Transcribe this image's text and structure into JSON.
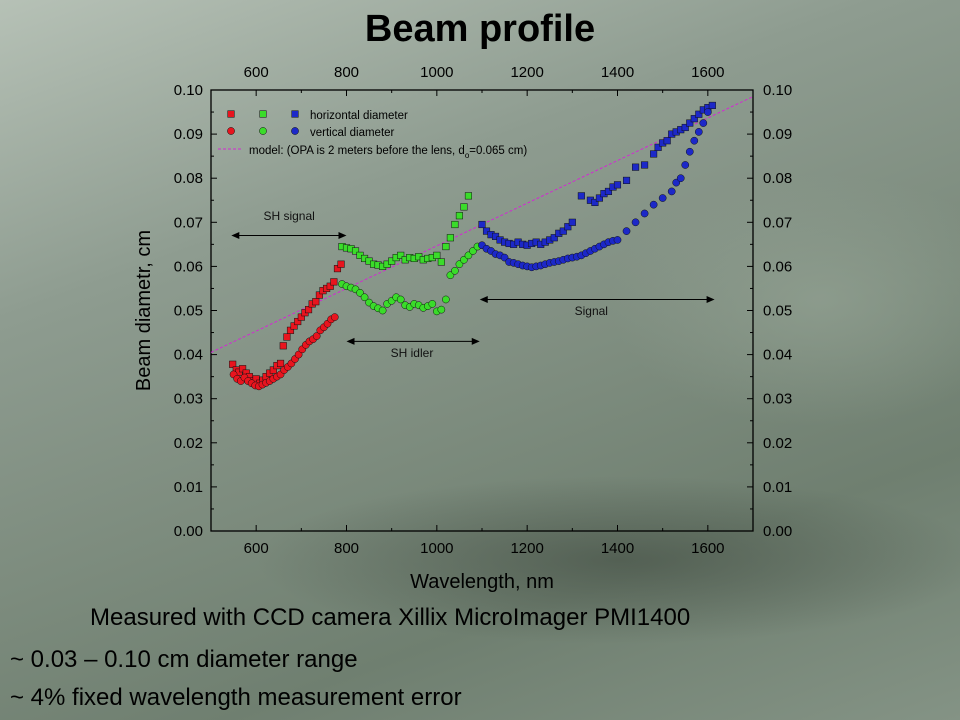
{
  "title": "Beam profile",
  "captions": {
    "line1": "Measured with CCD camera Xillix MicroImager PMI1400",
    "line2": "~ 0.03 – 0.10 cm diameter range",
    "line3": "~ 4% fixed wavelength measurement error"
  },
  "colors": {
    "red": "#e8141e",
    "green": "#3adc2a",
    "blue": "#1c28c8",
    "model": "#d22ad2"
  },
  "chart_data": {
    "type": "scatter",
    "xlabel": "Wavelength, nm",
    "ylabel": "Beam diametr, cm",
    "xlim": [
      500,
      1700
    ],
    "ylim": [
      0.0,
      0.1
    ],
    "xticks": [
      "600",
      "800",
      "1000",
      "1200",
      "1400",
      "1600"
    ],
    "yticks": [
      "0.00",
      "0.01",
      "0.02",
      "0.03",
      "0.04",
      "0.05",
      "0.06",
      "0.07",
      "0.08",
      "0.09",
      "0.10"
    ],
    "legend": {
      "horizontal": "horizontal diameter",
      "vertical": "vertical diameter",
      "model_prefix": "model: (OPA is 2 meters before the lens, d",
      "model_sub": "o",
      "model_suffix": "=0.065 cm)"
    },
    "annotations": [
      {
        "text": "SH signal",
        "from": 545,
        "to": 800,
        "y": 0.067,
        "label_y": 0.0705,
        "label_x": 673
      },
      {
        "text": "SH idler",
        "from": 800,
        "to": 1095,
        "y": 0.043,
        "label_y": 0.0395,
        "label_x": 945
      },
      {
        "text": "Signal",
        "from": 1095,
        "to": 1615,
        "y": 0.0525,
        "label_y": 0.049,
        "label_x": 1342
      }
    ],
    "model_line": {
      "x": [
        500,
        1700
      ],
      "y": [
        0.0405,
        0.0985
      ]
    },
    "series": [
      {
        "name": "horizontal diameter",
        "group": "red",
        "marker": "square",
        "x": [
          548,
          556,
          562,
          570,
          578,
          585,
          592,
          600,
          608,
          615,
          622,
          630,
          638,
          646,
          654,
          660,
          668,
          676,
          684,
          692,
          700,
          708,
          716,
          724,
          732,
          740,
          748,
          756,
          764,
          772,
          780,
          788
        ],
        "y": [
          0.0378,
          0.0365,
          0.036,
          0.0368,
          0.0358,
          0.035,
          0.034,
          0.0345,
          0.0335,
          0.0342,
          0.035,
          0.0358,
          0.0365,
          0.0375,
          0.038,
          0.042,
          0.044,
          0.0455,
          0.0465,
          0.0475,
          0.0485,
          0.0495,
          0.0502,
          0.0515,
          0.052,
          0.0535,
          0.0545,
          0.055,
          0.0555,
          0.0565,
          0.0595,
          0.0605
        ]
      },
      {
        "name": "vertical diameter",
        "group": "red",
        "marker": "circle",
        "x": [
          550,
          558,
          566,
          574,
          582,
          590,
          598,
          606,
          614,
          622,
          630,
          638,
          646,
          654,
          662,
          670,
          678,
          686,
          694,
          702,
          710,
          718,
          726,
          734,
          742,
          750,
          758,
          766,
          774
        ],
        "y": [
          0.0355,
          0.0345,
          0.034,
          0.0348,
          0.034,
          0.0335,
          0.033,
          0.0328,
          0.0332,
          0.0336,
          0.034,
          0.0345,
          0.035,
          0.0355,
          0.0365,
          0.0372,
          0.038,
          0.039,
          0.04,
          0.0412,
          0.0422,
          0.043,
          0.0435,
          0.0442,
          0.0455,
          0.0462,
          0.047,
          0.048,
          0.0485
        ]
      },
      {
        "name": "horizontal diameter",
        "group": "green",
        "marker": "square",
        "x": [
          790,
          800,
          810,
          820,
          830,
          840,
          850,
          860,
          870,
          880,
          890,
          900,
          910,
          920,
          930,
          940,
          950,
          960,
          970,
          980,
          990,
          1000,
          1010,
          1020,
          1030,
          1040,
          1050,
          1060,
          1070
        ],
        "y": [
          0.0645,
          0.0642,
          0.064,
          0.0635,
          0.0625,
          0.0618,
          0.0612,
          0.0605,
          0.0603,
          0.06,
          0.0605,
          0.0612,
          0.062,
          0.0625,
          0.0615,
          0.062,
          0.0618,
          0.0622,
          0.0615,
          0.0618,
          0.062,
          0.0625,
          0.061,
          0.0645,
          0.0665,
          0.0695,
          0.0715,
          0.0735,
          0.076
        ]
      },
      {
        "name": "vertical diameter",
        "group": "green",
        "marker": "circle",
        "x": [
          790,
          800,
          810,
          820,
          830,
          840,
          850,
          860,
          870,
          880,
          890,
          900,
          910,
          920,
          930,
          940,
          950,
          960,
          970,
          980,
          990,
          1000,
          1010,
          1020,
          1030,
          1040,
          1050,
          1060,
          1070,
          1080,
          1090
        ],
        "y": [
          0.056,
          0.0555,
          0.0552,
          0.0548,
          0.054,
          0.053,
          0.0518,
          0.051,
          0.0505,
          0.05,
          0.0515,
          0.0522,
          0.053,
          0.0525,
          0.0512,
          0.0508,
          0.0515,
          0.0512,
          0.0506,
          0.051,
          0.0515,
          0.0498,
          0.0502,
          0.0525,
          0.058,
          0.059,
          0.0605,
          0.0615,
          0.0625,
          0.0635,
          0.0645
        ]
      },
      {
        "name": "horizontal diameter",
        "group": "blue",
        "marker": "square",
        "x": [
          1100,
          1110,
          1120,
          1130,
          1140,
          1150,
          1160,
          1170,
          1180,
          1190,
          1200,
          1210,
          1220,
          1230,
          1240,
          1250,
          1260,
          1270,
          1280,
          1290,
          1300,
          1320,
          1340,
          1350,
          1360,
          1370,
          1380,
          1390,
          1400,
          1420,
          1440,
          1460,
          1480,
          1490,
          1500,
          1510,
          1520,
          1530,
          1540,
          1550,
          1560,
          1570,
          1580,
          1590,
          1600,
          1610
        ],
        "y": [
          0.0695,
          0.068,
          0.0672,
          0.0668,
          0.066,
          0.0655,
          0.0652,
          0.065,
          0.0655,
          0.065,
          0.0648,
          0.0652,
          0.0655,
          0.065,
          0.0655,
          0.066,
          0.0665,
          0.0675,
          0.068,
          0.069,
          0.07,
          0.076,
          0.075,
          0.0745,
          0.0755,
          0.0765,
          0.077,
          0.078,
          0.0785,
          0.0795,
          0.0825,
          0.083,
          0.0855,
          0.087,
          0.088,
          0.0885,
          0.09,
          0.0905,
          0.091,
          0.0915,
          0.0925,
          0.0935,
          0.0945,
          0.0955,
          0.096,
          0.0965
        ]
      },
      {
        "name": "vertical diameter",
        "group": "blue",
        "marker": "circle",
        "x": [
          1100,
          1110,
          1120,
          1130,
          1140,
          1150,
          1160,
          1170,
          1180,
          1190,
          1200,
          1210,
          1220,
          1230,
          1240,
          1250,
          1260,
          1270,
          1280,
          1290,
          1300,
          1310,
          1320,
          1330,
          1340,
          1350,
          1360,
          1370,
          1380,
          1390,
          1400,
          1420,
          1440,
          1460,
          1480,
          1500,
          1520,
          1530,
          1540,
          1550,
          1560,
          1570,
          1580,
          1590,
          1600
        ],
        "y": [
          0.0648,
          0.064,
          0.0635,
          0.0628,
          0.0625,
          0.062,
          0.061,
          0.0608,
          0.0605,
          0.0602,
          0.06,
          0.0598,
          0.06,
          0.0602,
          0.0605,
          0.0608,
          0.061,
          0.0612,
          0.0615,
          0.0618,
          0.062,
          0.0622,
          0.0625,
          0.063,
          0.0635,
          0.064,
          0.0645,
          0.065,
          0.0655,
          0.0658,
          0.066,
          0.068,
          0.07,
          0.072,
          0.074,
          0.0755,
          0.077,
          0.079,
          0.08,
          0.083,
          0.086,
          0.0885,
          0.0905,
          0.0925,
          0.095
        ]
      }
    ]
  }
}
